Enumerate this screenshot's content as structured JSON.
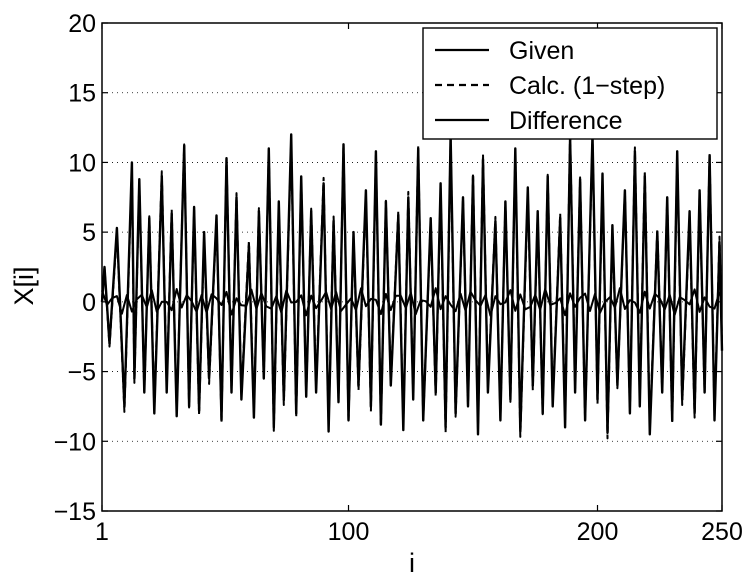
{
  "chart_data": {
    "type": "line",
    "title": "",
    "xlabel": "i",
    "ylabel": "X[i]",
    "xlim": [
      1,
      250
    ],
    "ylim": [
      -15,
      20
    ],
    "x_ticks": [
      1,
      100,
      200,
      250
    ],
    "x_tick_labels": [
      "1",
      "100",
      "200",
      "250"
    ],
    "y_ticks": [
      -15,
      -10,
      -5,
      0,
      5,
      10,
      15,
      20
    ],
    "y_tick_labels": [
      "−15",
      "−10",
      "−5",
      "0",
      "5",
      "10",
      "15",
      "20"
    ],
    "grid": {
      "horizontal_dotted": true,
      "vertical": false
    },
    "legend_position": "top-right",
    "series": [
      {
        "name": "Given",
        "style": "solid",
        "color": "#000000",
        "peaks": [
          [
            2,
            2.5
          ],
          [
            7,
            5.3
          ],
          [
            13,
            10
          ],
          [
            16,
            8.8
          ],
          [
            20,
            6.0
          ],
          [
            25,
            9.0
          ],
          [
            29,
            6.3
          ],
          [
            34,
            11.2
          ],
          [
            38,
            6.8
          ],
          [
            42,
            5.0
          ],
          [
            47,
            6.2
          ],
          [
            51,
            10.3
          ],
          [
            55,
            7.5
          ],
          [
            60,
            4.0
          ],
          [
            64,
            6.5
          ],
          [
            68,
            11.0
          ],
          [
            72,
            7.2
          ],
          [
            77,
            12.0
          ],
          [
            81,
            9.0
          ],
          [
            85,
            6.5
          ],
          [
            90,
            8.5
          ],
          [
            94,
            5.8
          ],
          [
            98,
            11.3
          ],
          [
            102,
            5.0
          ],
          [
            107,
            8.0
          ],
          [
            111,
            10.8
          ],
          [
            115,
            7.2
          ],
          [
            120,
            6.2
          ],
          [
            124,
            7.5
          ],
          [
            128,
            11.0
          ],
          [
            133,
            6.0
          ],
          [
            137,
            8.5
          ],
          [
            141,
            12.0
          ],
          [
            146,
            7.5
          ],
          [
            150,
            9.0
          ],
          [
            154,
            10.2
          ],
          [
            159,
            5.8
          ],
          [
            163,
            7.2
          ],
          [
            167,
            11.0
          ],
          [
            172,
            8.2
          ],
          [
            176,
            6.5
          ],
          [
            180,
            9.0
          ],
          [
            185,
            6.0
          ],
          [
            189,
            11.8
          ],
          [
            193,
            8.8
          ],
          [
            198,
            12.0
          ],
          [
            202,
            9.2
          ],
          [
            206,
            5.5
          ],
          [
            211,
            8.0
          ],
          [
            215,
            10.8
          ],
          [
            219,
            9.0
          ],
          [
            224,
            5.0
          ],
          [
            228,
            7.5
          ],
          [
            232,
            10.8
          ],
          [
            237,
            6.5
          ],
          [
            241,
            8.0
          ],
          [
            245,
            10.5
          ],
          [
            249,
            4.3
          ]
        ],
        "troughs": [
          [
            4,
            -3.0
          ],
          [
            10,
            -7.5
          ],
          [
            14,
            -5.5
          ],
          [
            18,
            -6.5
          ],
          [
            22,
            -8.0
          ],
          [
            27,
            -6.5
          ],
          [
            31,
            -8.2
          ],
          [
            36,
            -7.5
          ],
          [
            40,
            -7.8
          ],
          [
            44,
            -5.5
          ],
          [
            49,
            -8.5
          ],
          [
            53,
            -6.5
          ],
          [
            57,
            -7.0
          ],
          [
            62,
            -8.3
          ],
          [
            66,
            -5.5
          ],
          [
            70,
            -9.0
          ],
          [
            74,
            -7.0
          ],
          [
            79,
            -8.0
          ],
          [
            83,
            -6.8
          ],
          [
            87,
            -6.5
          ],
          [
            92,
            -9.3
          ],
          [
            96,
            -7.2
          ],
          [
            100,
            -8.5
          ],
          [
            104,
            -6.0
          ],
          [
            109,
            -7.5
          ],
          [
            113,
            -8.8
          ],
          [
            117,
            -6.0
          ],
          [
            122,
            -9.2
          ],
          [
            126,
            -7.0
          ],
          [
            130,
            -8.5
          ],
          [
            135,
            -6.5
          ],
          [
            139,
            -9.0
          ],
          [
            143,
            -8.0
          ],
          [
            148,
            -7.5
          ],
          [
            152,
            -9.5
          ],
          [
            156,
            -6.5
          ],
          [
            161,
            -8.5
          ],
          [
            165,
            -7.0
          ],
          [
            169,
            -9.3
          ],
          [
            174,
            -6.0
          ],
          [
            178,
            -8.0
          ],
          [
            182,
            -7.5
          ],
          [
            187,
            -9.0
          ],
          [
            191,
            -6.5
          ],
          [
            195,
            -8.5
          ],
          [
            200,
            -7.0
          ],
          [
            204,
            -9.4
          ],
          [
            208,
            -6.0
          ],
          [
            213,
            -8.0
          ],
          [
            217,
            -7.5
          ],
          [
            221,
            -9.5
          ],
          [
            226,
            -6.5
          ],
          [
            230,
            -8.5
          ],
          [
            234,
            -7.0
          ],
          [
            239,
            -8.0
          ],
          [
            243,
            -6.5
          ],
          [
            247,
            -8.5
          ],
          [
            250,
            -3.5
          ]
        ]
      },
      {
        "name": "Calc. (1−step)",
        "style": "dashed",
        "color": "#000000",
        "relation": "tracks Given closely with small one-step deviations"
      },
      {
        "name": "Difference",
        "style": "solid",
        "color": "#000000",
        "range": [
          -1,
          1
        ],
        "description": "small oscillation around 0"
      }
    ]
  }
}
